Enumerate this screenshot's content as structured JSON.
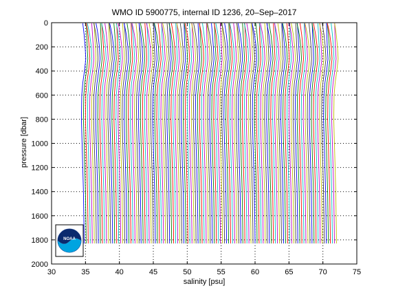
{
  "chart_data": {
    "type": "line",
    "title": "WMO ID 5900775, internal ID 1236, 20–Sep–2017",
    "xlabel": "salinity [psu]",
    "ylabel": "pressure [dbar]",
    "xlim": [
      30,
      75
    ],
    "ylim": [
      0,
      2000
    ],
    "y_reversed": true,
    "x_ticks": [
      30,
      35,
      40,
      45,
      50,
      55,
      60,
      65,
      70,
      75
    ],
    "y_ticks": [
      0,
      200,
      400,
      600,
      800,
      1000,
      1200,
      1400,
      1600,
      1800,
      2000
    ],
    "grid": "dotted",
    "logo": "NOAA",
    "profiles_description": "waterfall of many salinity profiles, each offset by ~0.3 psu",
    "series": [
      {
        "pressure": [
          5,
          50,
          100,
          200,
          300,
          400,
          500,
          600,
          800,
          1000,
          1200,
          1400,
          1600,
          1700,
          1830
        ],
        "salinity": [
          34.6,
          34.7,
          34.8,
          34.95,
          35.05,
          34.85,
          34.6,
          34.45,
          34.4,
          34.5,
          34.6,
          34.7,
          34.75,
          34.78,
          34.8
        ]
      }
    ],
    "n_profiles": 125,
    "offset_per_profile": 0.3,
    "colors": [
      "#0000ff",
      "#008000",
      "#ff0000",
      "#00bfbf",
      "#bf00bf",
      "#bfbf00",
      "#404040"
    ]
  }
}
